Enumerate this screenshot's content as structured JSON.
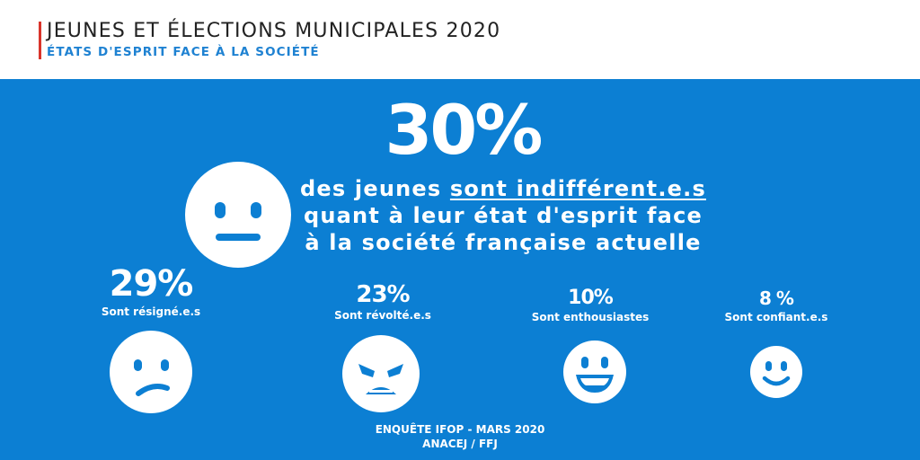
{
  "header": {
    "title": "JEUNES ET ÉLECTIONS MUNICIPALES 2020",
    "subtitle": "ÉTATS D'ESPRIT FACE À LA SOCIÉTÉ"
  },
  "headline": {
    "percent": "30%",
    "line1_pre": "des jeunes ",
    "line1_emph": "sont indifférent.e.s",
    "line2": "quant à leur état d'esprit face",
    "line3": "à la société française actuelle"
  },
  "stats": [
    {
      "percent": "29%",
      "label": "Sont résigné.e.s",
      "icon": "sad-face-icon"
    },
    {
      "percent": "23%",
      "label": "Sont révolté.e.s",
      "icon": "angry-face-icon"
    },
    {
      "percent": "10%",
      "label": "Sont enthousiastes",
      "icon": "grinning-face-icon"
    },
    {
      "percent": "8 %",
      "label": "Sont confiant.e.s",
      "icon": "smiling-face-icon"
    }
  ],
  "featured_icon": "neutral-face-icon",
  "footer": {
    "line1": "ENQUÊTE IFOP - MARS 2020",
    "line2": "ANACEJ / FFJ"
  },
  "colors": {
    "panel": "#0c7fd3",
    "accent_bar": "#d9342b",
    "subtitle": "#1f82d2",
    "face": "#ffffff",
    "face_features": "#0c7fd3"
  },
  "chart_data": {
    "type": "table",
    "categories": [
      "Sont indifférent.e.s",
      "Sont résigné.e.s",
      "Sont révolté.e.s",
      "Sont enthousiastes",
      "Sont confiant.e.s"
    ],
    "values": [
      30,
      29,
      23,
      10,
      8
    ],
    "title": "JEUNES ET ÉLECTIONS MUNICIPALES 2020",
    "subtitle": "ÉTATS D'ESPRIT FACE À LA SOCIÉTÉ"
  }
}
